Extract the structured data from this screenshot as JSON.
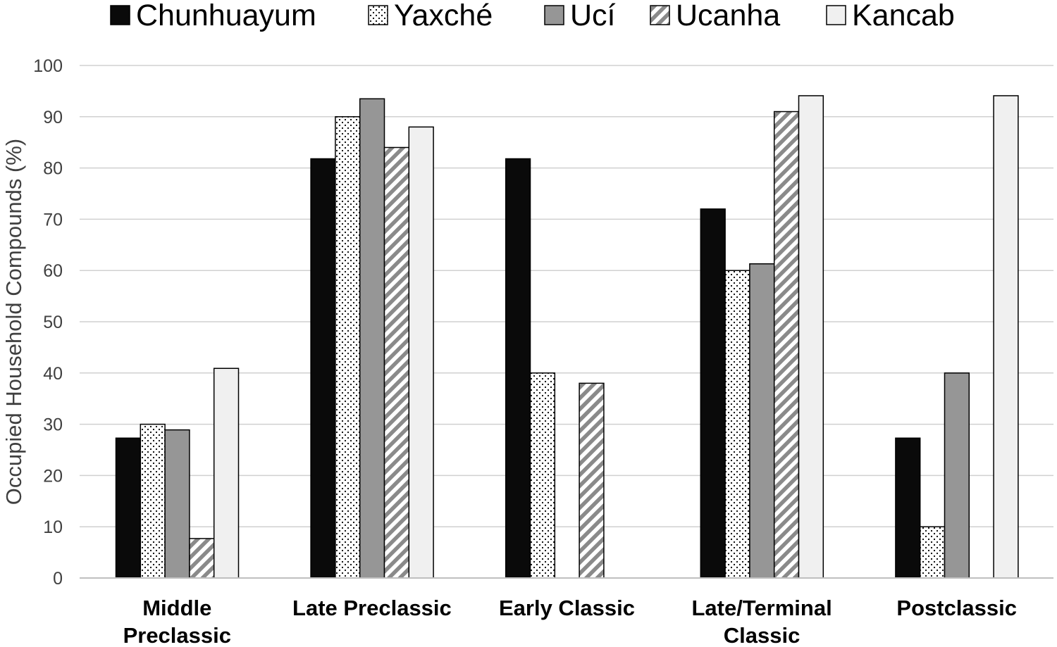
{
  "chart_data": {
    "type": "bar",
    "ylabel": "Occupied Household Compounds (%)",
    "xlabel": "",
    "ylim": [
      0,
      100
    ],
    "yticks": [
      0,
      10,
      20,
      30,
      40,
      50,
      60,
      70,
      80,
      90,
      100
    ],
    "grid": true,
    "legend_position": "top",
    "categories": [
      [
        "Middle",
        "Preclassic"
      ],
      [
        "Late Preclassic"
      ],
      [
        "Early Classic"
      ],
      [
        "Late/Terminal",
        "Classic"
      ],
      [
        "Postclassic"
      ]
    ],
    "series": [
      {
        "name": "Chunhuayum",
        "pattern": "solid-black",
        "color": "#0a0a0a",
        "values": [
          27.3,
          81.8,
          81.8,
          72.0,
          27.3
        ]
      },
      {
        "name": "Yaxché",
        "pattern": "dots",
        "color": "#ffffff",
        "values": [
          30.0,
          90.0,
          40.0,
          60.0,
          10.0
        ]
      },
      {
        "name": "Ucí",
        "pattern": "solid-gray",
        "color": "#969696",
        "values": [
          28.9,
          93.5,
          0,
          61.3,
          40.0
        ]
      },
      {
        "name": "Ucanha",
        "pattern": "diagonal-stripes",
        "color": "#9a9a9a",
        "values": [
          7.7,
          84.0,
          38.0,
          91.0,
          0
        ]
      },
      {
        "name": "Kancab",
        "pattern": "solid-light",
        "color": "#f0f0f0",
        "values": [
          40.9,
          88.0,
          0,
          94.1,
          94.1
        ]
      }
    ]
  }
}
